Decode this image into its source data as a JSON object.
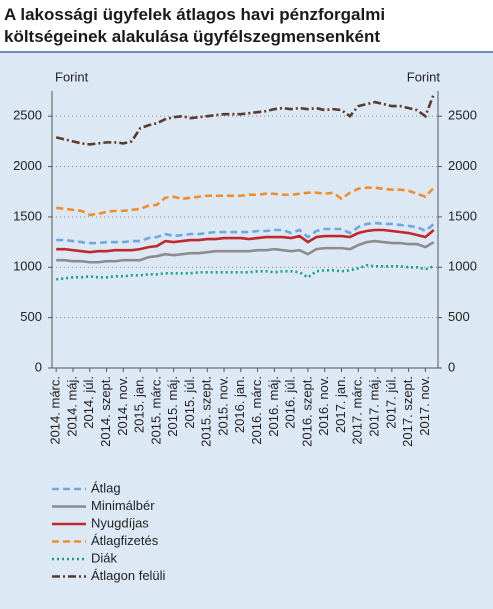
{
  "chart_data": {
    "type": "line",
    "title": "A lakossági ügyfelek átlagos havi pénzforgalmi költségeinek alakulása ügyfélszegmensenként",
    "y_label": "Forint",
    "y2_label": "Forint",
    "ylim": [
      0,
      2750
    ],
    "yticks": [
      0,
      500,
      1000,
      1500,
      2000,
      2500
    ],
    "y2lim": [
      0,
      2750
    ],
    "y2ticks": [
      0,
      500,
      1000,
      1500,
      2000,
      2500
    ],
    "grid": true,
    "categories": [
      "2014. márc.",
      null,
      "2014. máj.",
      null,
      "2014. júl.",
      null,
      "2014. szept.",
      null,
      "2014. nov.",
      null,
      "2015. jan.",
      null,
      "2015. márc.",
      null,
      "2015. máj.",
      null,
      "2015. júl.",
      null,
      "2015. szept.",
      null,
      "2015. nov.",
      null,
      "2016. jan.",
      null,
      "2016. márc.",
      null,
      "2016. máj.",
      null,
      "2016. júl.",
      null,
      "2016. szept.",
      null,
      "2016. nov.",
      null,
      "2017. jan.",
      null,
      "2017. márc.",
      null,
      "2017. máj.",
      null,
      "2017. júl.",
      null,
      "2017. szept.",
      null,
      "2017. nov.",
      null
    ],
    "series": [
      {
        "name": "Átlag",
        "color": "#6fa8dc",
        "dash": "dashed",
        "values": [
          1270,
          1270,
          1260,
          1250,
          1240,
          1240,
          1250,
          1250,
          1250,
          1260,
          1260,
          1290,
          1300,
          1330,
          1310,
          1320,
          1330,
          1330,
          1340,
          1350,
          1350,
          1350,
          1350,
          1350,
          1360,
          1360,
          1370,
          1370,
          1340,
          1370,
          1300,
          1360,
          1380,
          1380,
          1380,
          1340,
          1400,
          1430,
          1440,
          1430,
          1430,
          1420,
          1410,
          1400,
          1360,
          1430
        ]
      },
      {
        "name": "Minimálbér",
        "color": "#8c8c8c",
        "dash": "solid",
        "values": [
          1070,
          1070,
          1060,
          1060,
          1050,
          1050,
          1060,
          1060,
          1070,
          1070,
          1070,
          1100,
          1110,
          1130,
          1120,
          1130,
          1140,
          1140,
          1150,
          1160,
          1160,
          1160,
          1160,
          1160,
          1170,
          1170,
          1180,
          1170,
          1160,
          1170,
          1130,
          1180,
          1190,
          1190,
          1190,
          1180,
          1220,
          1250,
          1260,
          1250,
          1240,
          1240,
          1230,
          1230,
          1200,
          1250
        ]
      },
      {
        "name": "Nyugdíjas",
        "color": "#c0282d",
        "dash": "solid",
        "values": [
          1180,
          1180,
          1170,
          1160,
          1150,
          1160,
          1160,
          1170,
          1170,
          1170,
          1180,
          1200,
          1210,
          1260,
          1250,
          1260,
          1270,
          1270,
          1280,
          1280,
          1290,
          1290,
          1290,
          1280,
          1290,
          1300,
          1300,
          1300,
          1290,
          1310,
          1250,
          1300,
          1310,
          1310,
          1310,
          1300,
          1340,
          1360,
          1370,
          1370,
          1360,
          1350,
          1340,
          1320,
          1300,
          1370
        ]
      },
      {
        "name": "Átlagfizetés",
        "color": "#f28c28",
        "dash": "dashed",
        "values": [
          1590,
          1580,
          1570,
          1560,
          1520,
          1530,
          1550,
          1560,
          1560,
          1570,
          1580,
          1610,
          1620,
          1690,
          1700,
          1680,
          1690,
          1700,
          1710,
          1710,
          1710,
          1710,
          1710,
          1720,
          1720,
          1730,
          1730,
          1720,
          1720,
          1730,
          1740,
          1740,
          1730,
          1740,
          1680,
          1740,
          1780,
          1790,
          1790,
          1780,
          1770,
          1770,
          1760,
          1730,
          1700,
          1790
        ]
      },
      {
        "name": "Diák",
        "color": "#1a9e8a",
        "dash": "dotted",
        "values": [
          880,
          890,
          900,
          900,
          910,
          900,
          900,
          910,
          910,
          920,
          920,
          930,
          930,
          940,
          940,
          940,
          940,
          950,
          950,
          950,
          950,
          950,
          950,
          950,
          960,
          960,
          950,
          960,
          960,
          950,
          900,
          960,
          970,
          970,
          960,
          970,
          990,
          1020,
          1010,
          1010,
          1010,
          1010,
          1000,
          1000,
          980,
          1010
        ]
      },
      {
        "name": "Átlagon felüli",
        "color": "#5a3a2a",
        "dash": "dashdot",
        "values": [
          2290,
          2270,
          2250,
          2230,
          2220,
          2230,
          2240,
          2240,
          2230,
          2250,
          2380,
          2410,
          2430,
          2470,
          2490,
          2500,
          2480,
          2490,
          2500,
          2510,
          2520,
          2520,
          2520,
          2530,
          2540,
          2550,
          2570,
          2580,
          2570,
          2580,
          2570,
          2580,
          2560,
          2570,
          2560,
          2500,
          2600,
          2620,
          2640,
          2620,
          2600,
          2600,
          2580,
          2560,
          2500,
          2720
        ]
      }
    ]
  }
}
